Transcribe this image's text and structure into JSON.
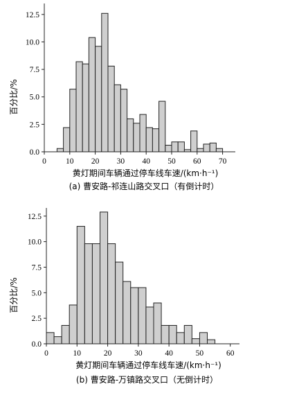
{
  "chart_data": [
    {
      "type": "bar",
      "caption": "(a) 曹安路-祁连山路交叉口（有倒计时）",
      "xlabel": "黄灯期间车辆通过停车线车速/(km·h⁻¹)",
      "ylabel": "百分比/%",
      "xlim": [
        0,
        75
      ],
      "ylim": [
        0,
        13.5
      ],
      "xticks": [
        0,
        10,
        20,
        30,
        40,
        50,
        60,
        70
      ],
      "yticks": [
        0.0,
        2.5,
        5.0,
        7.5,
        10.0,
        12.5
      ],
      "ytick_labels": [
        "0.0",
        "2.5",
        "5.0",
        "7.5",
        "10.0",
        "12.5"
      ],
      "bin_width": 2.5,
      "x": [
        5,
        7.5,
        10,
        12.5,
        15,
        17.5,
        20,
        22.5,
        25,
        27.5,
        30,
        32.5,
        35,
        37.5,
        40,
        42.5,
        45,
        47.5,
        50,
        52.5,
        55,
        57.5,
        60,
        62.5,
        65,
        67.5
      ],
      "values": [
        0.3,
        2.2,
        5.7,
        8.2,
        8.0,
        10.4,
        9.6,
        12.6,
        7.8,
        6.1,
        5.7,
        3.0,
        2.6,
        3.4,
        2.2,
        2.1,
        4.6,
        0.6,
        0.9,
        0.9,
        0.2,
        1.9,
        0.3,
        0.7,
        0.8,
        0.3
      ]
    },
    {
      "type": "bar",
      "caption": "(b) 曹安路-万镇路交叉口（无倒计时）",
      "xlabel": "黄灯期间车辆通过停车线车速/(km·h⁻¹)",
      "ylabel": "百分比/%",
      "xlim": [
        0,
        63
      ],
      "ylim": [
        0,
        13.3
      ],
      "xticks": [
        0,
        10,
        20,
        30,
        40,
        50,
        60
      ],
      "yticks": [
        0.0,
        2.5,
        5.0,
        7.5,
        10.0,
        12.5
      ],
      "ytick_labels": [
        "0.0",
        "2.5",
        "5.0",
        "7.5",
        "10.0",
        "12.5"
      ],
      "bin_width": 2.5,
      "x": [
        0,
        2.5,
        5,
        7.5,
        10,
        12.5,
        15,
        17.5,
        20,
        22.5,
        25,
        27.5,
        30,
        32.5,
        35,
        37.5,
        40,
        42.5,
        45,
        47.5,
        50,
        52.5
      ],
      "values": [
        1.1,
        0.7,
        1.8,
        3.8,
        11.5,
        9.8,
        9.8,
        12.9,
        9.8,
        8.0,
        6.1,
        5.5,
        5.5,
        3.6,
        4.0,
        1.8,
        1.8,
        1.1,
        1.8,
        0.5,
        1.1,
        0.4
      ]
    }
  ]
}
